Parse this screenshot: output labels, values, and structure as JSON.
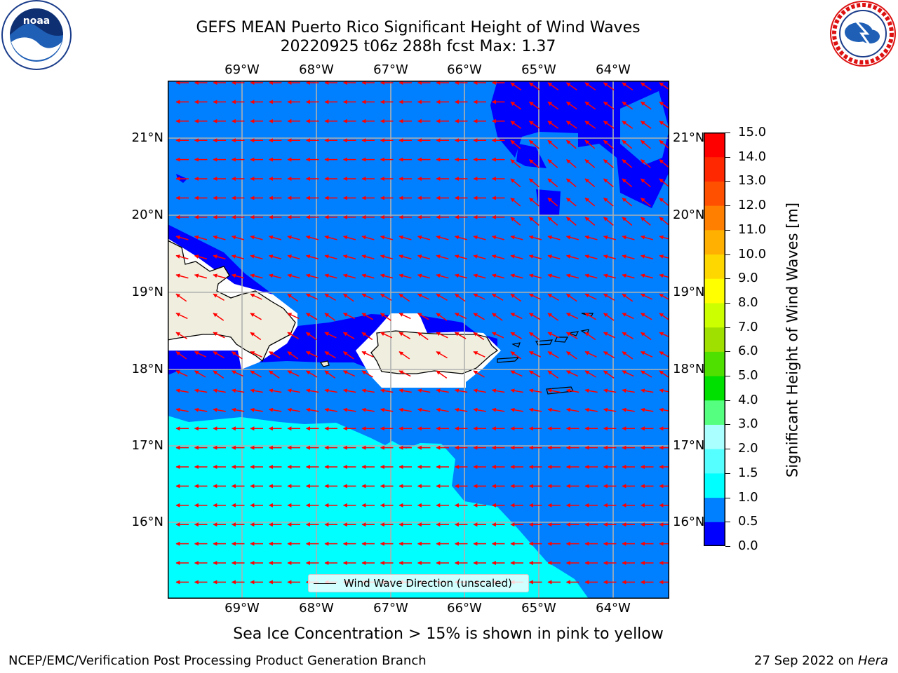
{
  "title": {
    "line1": "GEFS MEAN Puerto Rico Significant Height of Wind Waves",
    "line2": "20220925 t06z 288h fcst   Max: 1.37"
  },
  "axes": {
    "lon_labels": [
      "69°W",
      "68°W",
      "67°W",
      "66°W",
      "65°W",
      "64°W"
    ],
    "lon_values": [
      -69,
      -68,
      -67,
      -66,
      -65,
      -64
    ],
    "lat_labels": [
      "21°N",
      "20°N",
      "19°N",
      "18°N",
      "17°N",
      "16°N"
    ],
    "lat_values": [
      21,
      20,
      19,
      18,
      17,
      16
    ],
    "extent": {
      "lon_min": -70.0,
      "lon_max": -63.25,
      "lat_min": 15.0,
      "lat_max": 21.75
    }
  },
  "colorbar": {
    "title": "Significant Height of Wind Waves [m]",
    "tick_labels": [
      "0.0",
      "0.5",
      "1.0",
      "1.5",
      "2.0",
      "3.0",
      "4.0",
      "5.0",
      "6.0",
      "7.0",
      "8.0",
      "9.0",
      "10.0",
      "11.0",
      "12.0",
      "13.0",
      "14.0",
      "15.0"
    ],
    "colors": [
      "#0000ff",
      "#0080ff",
      "#00ffff",
      "#55ffff",
      "#aaffff",
      "#55ff80",
      "#00e000",
      "#50e000",
      "#a0e000",
      "#ccff00",
      "#ffff00",
      "#ffd700",
      "#ffb000",
      "#ff8000",
      "#ff5000",
      "#ff2800",
      "#ff0000"
    ]
  },
  "field_colors": {
    "land": "#f0efdf",
    "undefined": "#ffffff",
    "band_0_0_5": "#0000ff",
    "band_0_5_1_0": "#0080ff",
    "band_1_0_1_5": "#00ffff",
    "arrows": "#ff0000",
    "gridlines": "#b0b0b0",
    "coast": "#000000"
  },
  "legend": {
    "label": "Wind Wave Direction (unscaled)"
  },
  "subtitle": "Sea Ice Concentration > 15% is shown in pink to yellow",
  "footer": {
    "left": "NCEP/EMC/Verification Post Processing Product Generation Branch",
    "date": "27 Sep 2022 on ",
    "host": "Hera"
  },
  "logos": {
    "left": "noaa-logo",
    "right": "nws-logo"
  }
}
